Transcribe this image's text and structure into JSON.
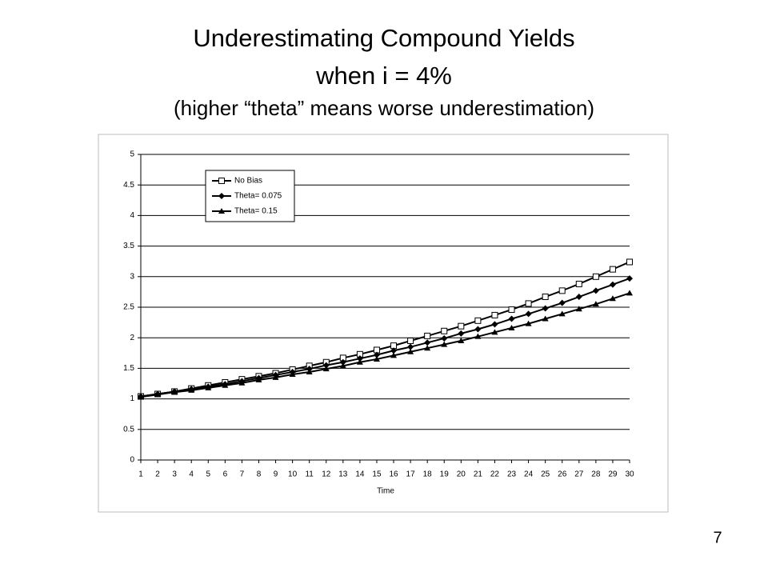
{
  "chart_data": {
    "type": "line",
    "title": [
      "Underestimating Compound Yields",
      "when i = 4%"
    ],
    "subtitle": "(higher “theta” means worse underestimation)",
    "x_label": "Time",
    "x": [
      1,
      2,
      3,
      4,
      5,
      6,
      7,
      8,
      9,
      10,
      11,
      12,
      13,
      14,
      15,
      16,
      17,
      18,
      19,
      20,
      21,
      22,
      23,
      24,
      25,
      26,
      27,
      28,
      29,
      30
    ],
    "xlim": [
      1,
      30
    ],
    "series": [
      {
        "name": "No Bias",
        "color": "#000000",
        "marker": "square",
        "values": [
          1.04,
          1.08,
          1.12,
          1.17,
          1.22,
          1.27,
          1.32,
          1.37,
          1.42,
          1.48,
          1.54,
          1.6,
          1.67,
          1.73,
          1.8,
          1.87,
          1.95,
          2.03,
          2.11,
          2.19,
          2.28,
          2.37,
          2.46,
          2.56,
          2.67,
          2.77,
          2.88,
          3.0,
          3.12,
          3.24
        ]
      },
      {
        "name": "Theta= 0.075",
        "color": "#000000",
        "marker": "diamond",
        "values": [
          1.04,
          1.08,
          1.12,
          1.16,
          1.2,
          1.24,
          1.29,
          1.34,
          1.39,
          1.44,
          1.49,
          1.55,
          1.6,
          1.66,
          1.72,
          1.79,
          1.85,
          1.92,
          1.99,
          2.07,
          2.14,
          2.22,
          2.31,
          2.39,
          2.48,
          2.57,
          2.67,
          2.77,
          2.87,
          2.97
        ]
      },
      {
        "name": "Theta= 0.15",
        "color": "#000000",
        "marker": "triangle",
        "values": [
          1.03,
          1.07,
          1.11,
          1.14,
          1.18,
          1.22,
          1.26,
          1.31,
          1.35,
          1.4,
          1.44,
          1.49,
          1.54,
          1.6,
          1.65,
          1.71,
          1.77,
          1.83,
          1.89,
          1.95,
          2.02,
          2.09,
          2.16,
          2.23,
          2.31,
          2.39,
          2.47,
          2.55,
          2.64,
          2.73
        ]
      }
    ],
    "ylim": [
      0,
      5
    ],
    "yticks": [
      0,
      0.5,
      1,
      1.5,
      2,
      2.5,
      3,
      3.5,
      4,
      4.5,
      5
    ],
    "grid": true,
    "legend": "top-left"
  },
  "slide_number": "7"
}
